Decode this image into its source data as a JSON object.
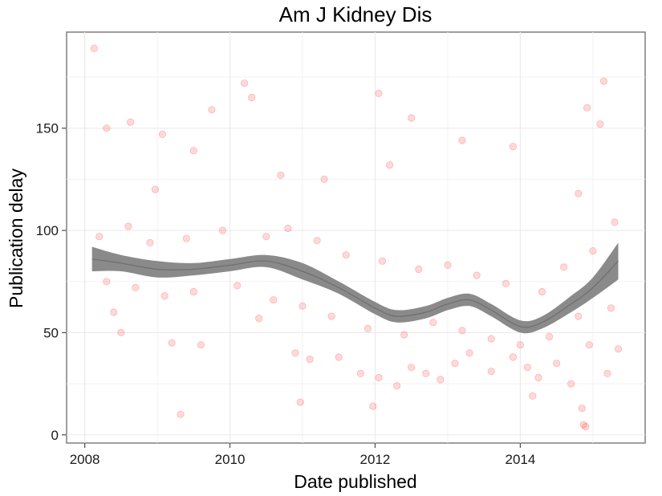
{
  "chart_data": {
    "type": "scatter",
    "title": "Am J Kidney Dis",
    "xlabel": "Date published",
    "ylabel": "Publication delay",
    "xlim": [
      2007.75,
      2015.72
    ],
    "ylim": [
      -4,
      197
    ],
    "xticks": [
      2008,
      2010,
      2012,
      2014
    ],
    "yticks": [
      0,
      50,
      100,
      150
    ],
    "grid": true,
    "point_color": "#ff0000",
    "point_opacity": 0.15,
    "smooth_color": "#808080",
    "smooth_fit": {
      "x": [
        2008.1,
        2008.5,
        2009.0,
        2009.5,
        2010.0,
        2010.5,
        2011.0,
        2011.5,
        2012.0,
        2012.3,
        2012.7,
        2013.0,
        2013.3,
        2013.6,
        2014.0,
        2014.3,
        2014.7,
        2015.0,
        2015.35
      ],
      "y": [
        86,
        84,
        81,
        81,
        83,
        85,
        80,
        72,
        62,
        58,
        60,
        64,
        66,
        61,
        53,
        55,
        64,
        72,
        85
      ],
      "lower": [
        80,
        80,
        77,
        78,
        80,
        82,
        76,
        69,
        59,
        55,
        57,
        61,
        63,
        58,
        50,
        52,
        60,
        67,
        76
      ],
      "upper": [
        92,
        88,
        85,
        84,
        86,
        88,
        84,
        75,
        65,
        61,
        63,
        67,
        69,
        64,
        56,
        58,
        68,
        77,
        94
      ]
    },
    "points": [
      [
        2008.13,
        189
      ],
      [
        2009.32,
        10
      ],
      [
        2010.2,
        172
      ],
      [
        2012.05,
        167
      ],
      [
        2015.15,
        173
      ],
      [
        2014.87,
        5
      ],
      [
        2014.9,
        4
      ],
      [
        2014.85,
        13
      ],
      [
        2010.97,
        16
      ],
      [
        2011.97,
        14
      ],
      [
        2014.17,
        19
      ],
      [
        2014.92,
        160
      ],
      [
        2015.1,
        152
      ],
      [
        2008.3,
        150
      ],
      [
        2008.63,
        153
      ],
      [
        2009.07,
        147
      ],
      [
        2009.75,
        159
      ],
      [
        2010.3,
        165
      ],
      [
        2012.5,
        155
      ],
      [
        2013.2,
        144
      ],
      [
        2013.9,
        141
      ],
      [
        2008.97,
        120
      ],
      [
        2009.5,
        139
      ],
      [
        2010.7,
        127
      ],
      [
        2011.3,
        125
      ],
      [
        2012.2,
        132
      ],
      [
        2014.8,
        118
      ],
      [
        2015.3,
        104
      ],
      [
        2008.4,
        60
      ],
      [
        2008.5,
        50
      ],
      [
        2009.2,
        45
      ],
      [
        2009.6,
        44
      ],
      [
        2010.4,
        57
      ],
      [
        2010.9,
        40
      ],
      [
        2011.1,
        37
      ],
      [
        2011.5,
        38
      ],
      [
        2011.8,
        30
      ],
      [
        2012.05,
        28
      ],
      [
        2012.3,
        24
      ],
      [
        2012.5,
        33
      ],
      [
        2012.7,
        30
      ],
      [
        2012.9,
        27
      ],
      [
        2013.1,
        35
      ],
      [
        2013.3,
        40
      ],
      [
        2013.6,
        31
      ],
      [
        2013.9,
        38
      ],
      [
        2014.1,
        33
      ],
      [
        2014.25,
        28
      ],
      [
        2014.5,
        35
      ],
      [
        2014.7,
        25
      ],
      [
        2014.95,
        44
      ],
      [
        2015.2,
        30
      ],
      [
        2015.35,
        42
      ],
      [
        2008.2,
        97
      ],
      [
        2008.6,
        102
      ],
      [
        2008.9,
        94
      ],
      [
        2009.4,
        96
      ],
      [
        2009.9,
        100
      ],
      [
        2010.5,
        97
      ],
      [
        2010.8,
        101
      ],
      [
        2011.2,
        95
      ],
      [
        2011.6,
        88
      ],
      [
        2012.1,
        85
      ],
      [
        2012.6,
        81
      ],
      [
        2013.0,
        83
      ],
      [
        2013.4,
        78
      ],
      [
        2013.8,
        74
      ],
      [
        2014.3,
        70
      ],
      [
        2014.6,
        82
      ],
      [
        2015.0,
        90
      ],
      [
        2008.3,
        75
      ],
      [
        2008.7,
        72
      ],
      [
        2009.1,
        68
      ],
      [
        2009.5,
        70
      ],
      [
        2010.1,
        73
      ],
      [
        2010.6,
        66
      ],
      [
        2011.0,
        63
      ],
      [
        2011.4,
        58
      ],
      [
        2011.9,
        52
      ],
      [
        2012.4,
        49
      ],
      [
        2012.8,
        55
      ],
      [
        2013.2,
        51
      ],
      [
        2013.6,
        47
      ],
      [
        2014.0,
        44
      ],
      [
        2014.4,
        48
      ],
      [
        2014.8,
        58
      ],
      [
        2015.25,
        62
      ]
    ]
  }
}
